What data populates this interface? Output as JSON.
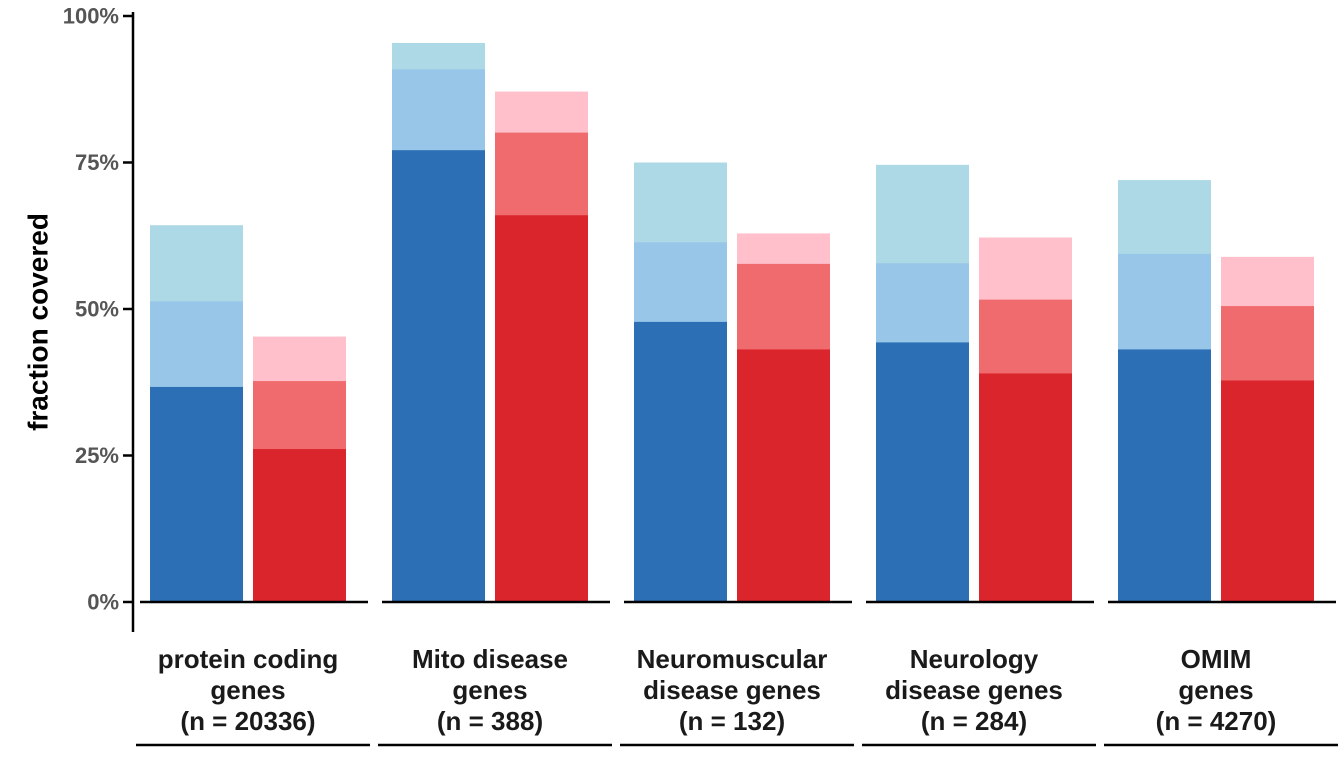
{
  "chart_data": {
    "type": "bar",
    "stacking": "overlapping-cumulative",
    "ylabel": "fraction covered",
    "ylim": [
      0,
      1
    ],
    "y_ticks": [
      {
        "value": 0,
        "label": "0%"
      },
      {
        "value": 0.25,
        "label": "25%"
      },
      {
        "value": 0.5,
        "label": "50%"
      },
      {
        "value": 0.75,
        "label": "75%"
      },
      {
        "value": 1.0,
        "label": "100%"
      }
    ],
    "categories": [
      {
        "lines": [
          "protein coding",
          "genes",
          "(n = 20336)"
        ]
      },
      {
        "lines": [
          "Mito disease",
          "genes",
          "(n = 388)"
        ]
      },
      {
        "lines": [
          "Neuromuscular",
          "disease genes",
          "(n = 132)"
        ]
      },
      {
        "lines": [
          "Neurology",
          "disease genes",
          "(n = 284)"
        ]
      },
      {
        "lines": [
          "OMIM",
          "genes",
          "(n = 4270)"
        ]
      }
    ],
    "groups": [
      {
        "color_levels": [
          "#2c6fb4",
          "#98c6e8",
          "#add8e6"
        ],
        "values": [
          [
            0.367,
            0.513,
            0.643
          ],
          [
            0.771,
            0.909,
            0.954
          ],
          [
            0.478,
            0.614,
            0.75
          ],
          [
            0.443,
            0.578,
            0.746
          ],
          [
            0.431,
            0.594,
            0.72
          ]
        ]
      },
      {
        "color_levels": [
          "#da252d",
          "#ef6b6e",
          "#ffc0cb"
        ],
        "values": [
          [
            0.261,
            0.377,
            0.453
          ],
          [
            0.66,
            0.801,
            0.871
          ],
          [
            0.431,
            0.577,
            0.629
          ],
          [
            0.39,
            0.516,
            0.622
          ],
          [
            0.378,
            0.505,
            0.589
          ]
        ]
      }
    ],
    "grid": false,
    "legend": "none"
  }
}
